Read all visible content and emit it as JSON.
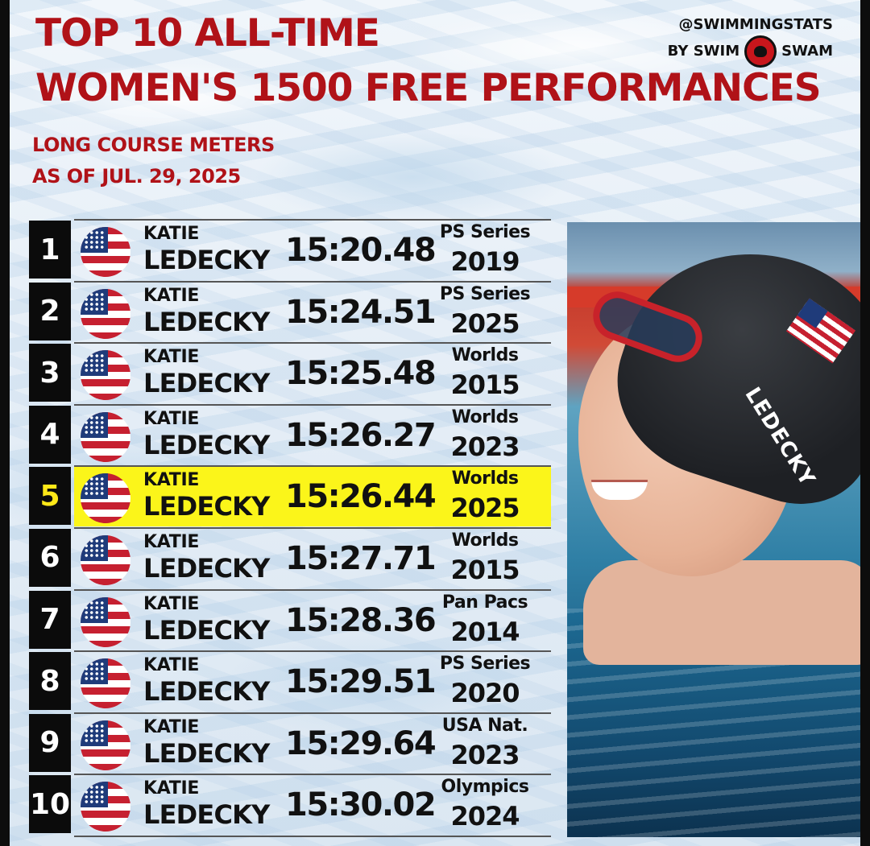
{
  "header": {
    "title_line1": "TOP 10 ALL-TIME",
    "title_line2": "WOMEN'S 1500 FREE PERFORMANCES",
    "subtitle_line1": "LONG COURSE METERS",
    "subtitle_line2": "AS OF JUL. 29, 2025"
  },
  "brand": {
    "handle": "@SWIMMINGSTATS",
    "by": "BY SWIM",
    "name": "SWAM"
  },
  "photo": {
    "cap_text": "LEDECKY"
  },
  "rows": [
    {
      "rank": "1",
      "first": "KATIE",
      "last": "LEDECKY",
      "time": "15:20.48",
      "meet": "PS Series",
      "year": "2019"
    },
    {
      "rank": "2",
      "first": "KATIE",
      "last": "LEDECKY",
      "time": "15:24.51",
      "meet": "PS Series",
      "year": "2025"
    },
    {
      "rank": "3",
      "first": "KATIE",
      "last": "LEDECKY",
      "time": "15:25.48",
      "meet": "Worlds",
      "year": "2015"
    },
    {
      "rank": "4",
      "first": "KATIE",
      "last": "LEDECKY",
      "time": "15:26.27",
      "meet": "Worlds",
      "year": "2023"
    },
    {
      "rank": "5",
      "first": "KATIE",
      "last": "LEDECKY",
      "time": "15:26.44",
      "meet": "Worlds",
      "year": "2025"
    },
    {
      "rank": "6",
      "first": "KATIE",
      "last": "LEDECKY",
      "time": "15:27.71",
      "meet": "Worlds",
      "year": "2015"
    },
    {
      "rank": "7",
      "first": "KATIE",
      "last": "LEDECKY",
      "time": "15:28.36",
      "meet": "Pan Pacs",
      "year": "2014"
    },
    {
      "rank": "8",
      "first": "KATIE",
      "last": "LEDECKY",
      "time": "15:29.51",
      "meet": "PS Series",
      "year": "2020"
    },
    {
      "rank": "9",
      "first": "KATIE",
      "last": "LEDECKY",
      "time": "15:29.64",
      "meet": "USA Nat.",
      "year": "2023"
    },
    {
      "rank": "10",
      "first": "KATIE",
      "last": "LEDECKY",
      "time": "15:30.02",
      "meet": "Olympics",
      "year": "2024"
    }
  ],
  "highlight_rank": "5",
  "colors": {
    "title_red": "#b01218",
    "highlight_yellow": "#fbf51a",
    "rank_box": "#0b0b0b"
  },
  "icons": {
    "row_flag": "usa-flag-icon",
    "brand_logo": "swimswam-logo-icon"
  }
}
